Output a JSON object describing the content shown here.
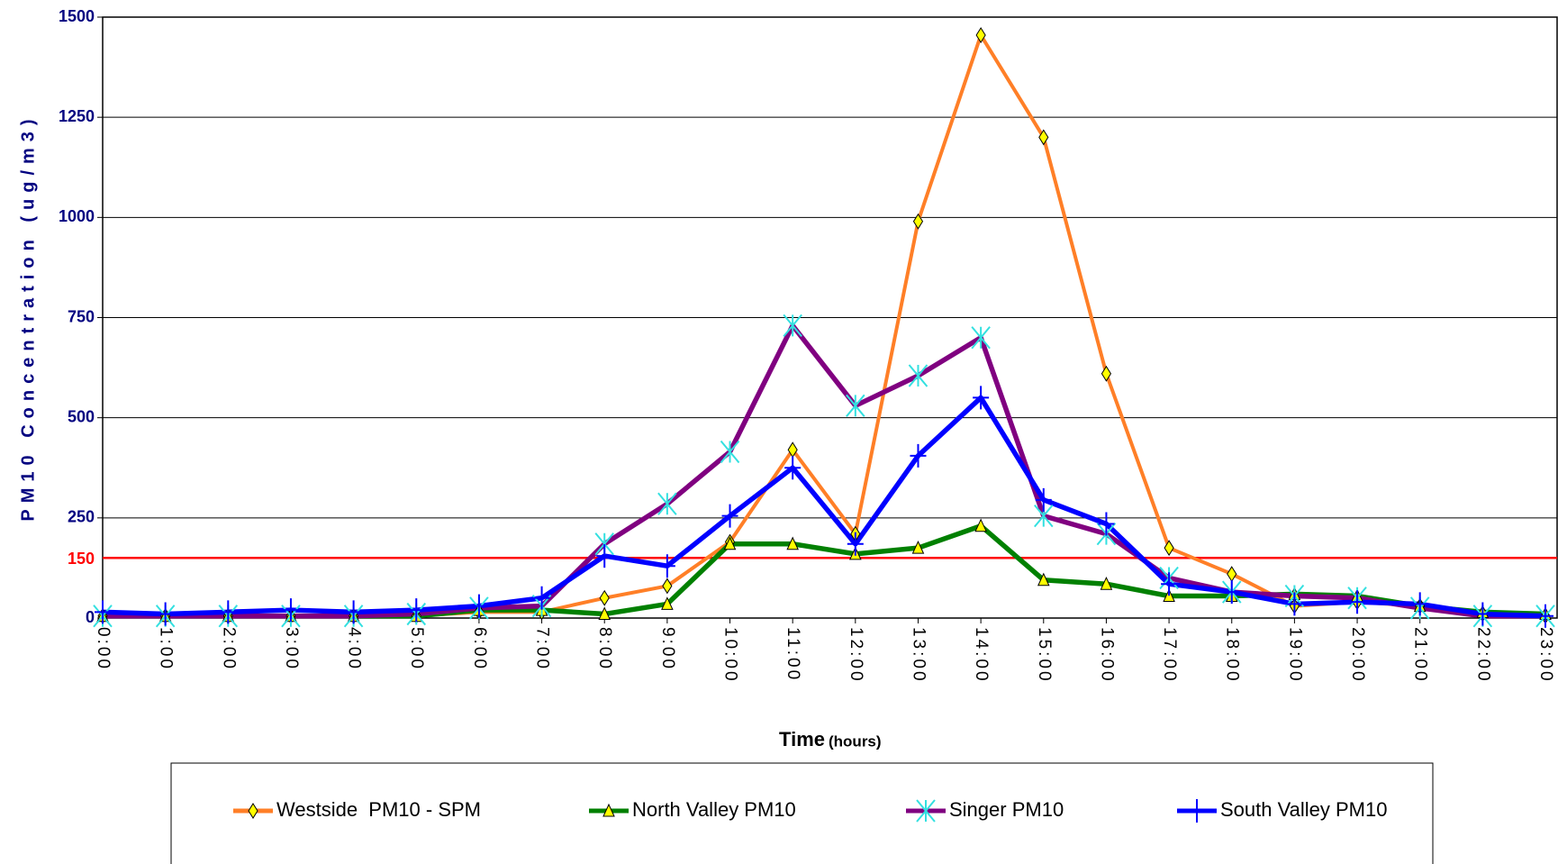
{
  "chart_data": {
    "type": "line",
    "y_label": "PM10 Concentration (ug/m3)",
    "x_label": "Time",
    "x_label_unit": "(hours)",
    "categories": [
      "0:00",
      "1:00",
      "2:00",
      "3:00",
      "4:00",
      "5:00",
      "6:00",
      "7:00",
      "8:00",
      "9:00",
      "10:00",
      "11:00",
      "12:00",
      "13:00",
      "14:00",
      "15:00",
      "16:00",
      "17:00",
      "18:00",
      "19:00",
      "20:00",
      "21:00",
      "22:00",
      "23:00"
    ],
    "series": [
      {
        "name": "Westside  PM10 - SPM",
        "color": "#ff7f27",
        "marker": "diamond",
        "marker_color": "#ffff00",
        "values": [
          5,
          5,
          5,
          5,
          5,
          5,
          15,
          15,
          50,
          80,
          190,
          420,
          210,
          990,
          1455,
          1200,
          610,
          175,
          110,
          30,
          40,
          30,
          10,
          5
        ]
      },
      {
        "name": "North Valley PM10",
        "color": "#008000",
        "marker": "triangle",
        "marker_color": "#ffff00",
        "values": [
          5,
          5,
          5,
          5,
          5,
          5,
          20,
          20,
          10,
          35,
          185,
          185,
          160,
          175,
          230,
          95,
          85,
          55,
          55,
          60,
          55,
          30,
          15,
          10
        ]
      },
      {
        "name": "Singer PM10",
        "color": "#800080",
        "marker": "star",
        "marker_color": "#33e0e0",
        "values": [
          5,
          5,
          5,
          5,
          5,
          10,
          25,
          30,
          185,
          285,
          415,
          730,
          530,
          605,
          700,
          255,
          210,
          100,
          65,
          55,
          50,
          25,
          5,
          5
        ]
      },
      {
        "name": "South Valley PM10",
        "color": "#0000ff",
        "marker": "plus",
        "marker_color": "#0000ff",
        "values": [
          15,
          10,
          15,
          20,
          15,
          20,
          30,
          50,
          155,
          130,
          255,
          375,
          185,
          405,
          550,
          295,
          235,
          85,
          65,
          35,
          40,
          35,
          10,
          5
        ]
      }
    ],
    "ylim": [
      0,
      1500
    ],
    "yticks": [
      0,
      250,
      500,
      750,
      1000,
      1250,
      1500
    ],
    "threshold": 150,
    "threshold_color": "#ff0000",
    "grid": true
  }
}
